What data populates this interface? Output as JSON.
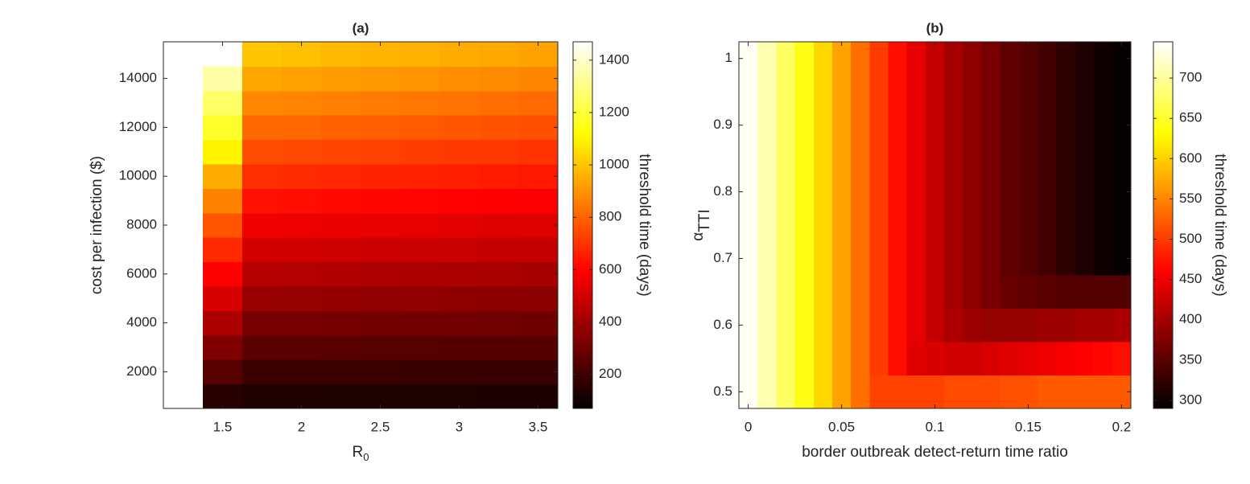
{
  "chart_data": [
    {
      "type": "heatmap",
      "title": "(a)",
      "xlabel": "R",
      "xlabel_sub": "0",
      "ylabel": "cost per infection ($)",
      "colorbar_label": "threshold time (days)",
      "colormap": "hot",
      "x": [
        1.25,
        1.5,
        1.75,
        2,
        2.25,
        2.5,
        2.75,
        3,
        3.25,
        3.5
      ],
      "y": [
        1000,
        2000,
        3000,
        4000,
        5000,
        6000,
        7000,
        8000,
        9000,
        10000,
        11000,
        12000,
        13000,
        14000,
        15000
      ],
      "z": [
        [
          null,
          150,
          132,
          131,
          130,
          130,
          129,
          129,
          128,
          127
        ],
        [
          null,
          250,
          194,
          193,
          191,
          190,
          188,
          187,
          186,
          185
        ],
        [
          null,
          330,
          256,
          254,
          251,
          249,
          248,
          246,
          244,
          242
        ],
        [
          null,
          420,
          318,
          316,
          312,
          309,
          307,
          304,
          302,
          299
        ],
        [
          null,
          510,
          380,
          377,
          372,
          369,
          366,
          363,
          360,
          357
        ],
        [
          null,
          590,
          442,
          438,
          433,
          429,
          425,
          422,
          418,
          414
        ],
        [
          null,
          680,
          504,
          500,
          493,
          489,
          484,
          480,
          476,
          471
        ],
        [
          null,
          770,
          566,
          561,
          554,
          549,
          544,
          539,
          534,
          529
        ],
        [
          null,
          860,
          628,
          622,
          614,
          608,
          603,
          597,
          592,
          586
        ],
        [
          null,
          950,
          690,
          684,
          675,
          668,
          662,
          656,
          650,
          644
        ],
        [
          null,
          1100,
          752,
          745,
          735,
          728,
          721,
          714,
          708,
          701
        ],
        [
          null,
          1180,
          814,
          807,
          795,
          788,
          781,
          773,
          766,
          758
        ],
        [
          null,
          1260,
          876,
          868,
          856,
          848,
          840,
          832,
          824,
          816
        ],
        [
          null,
          1350,
          938,
          929,
          916,
          908,
          899,
          890,
          882,
          873
        ],
        [
          null,
          null,
          1000,
          991,
          977,
          967,
          958,
          949,
          940,
          930
        ]
      ],
      "xlim": [
        1.125,
        3.625
      ],
      "xticks": [
        1.5,
        2,
        2.5,
        3,
        3.5
      ],
      "ylim": [
        500,
        15500
      ],
      "yticks": [
        2000,
        4000,
        6000,
        8000,
        10000,
        12000,
        14000
      ],
      "clim": [
        70,
        1470
      ],
      "cticks": [
        200,
        400,
        600,
        800,
        1000,
        1200,
        1400
      ]
    },
    {
      "type": "heatmap",
      "title": "(b)",
      "xlabel": "border outbreak detect-return time ratio",
      "ylabel": "α",
      "ylabel_sub": "TTI",
      "colorbar_label": "threshold time (days)",
      "colormap": "hot",
      "x": [
        0,
        0.01,
        0.02,
        0.03,
        0.04,
        0.05,
        0.06,
        0.07,
        0.08,
        0.09,
        0.1,
        0.11,
        0.12,
        0.13,
        0.14,
        0.15,
        0.16,
        0.17,
        0.18,
        0.19,
        0.2
      ],
      "y": [
        0.5,
        0.55,
        0.6,
        0.65,
        0.7,
        0.75,
        0.8,
        0.85,
        0.9,
        0.95,
        1
      ],
      "z": [
        [
          740,
          710,
          675,
          640,
          605,
          570,
          535,
          505,
          505,
          505,
          505,
          510,
          510,
          510,
          515,
          515,
          520,
          520,
          520,
          520,
          520
        ],
        [
          740,
          710,
          675,
          640,
          605,
          570,
          535,
          500,
          470,
          440,
          435,
          430,
          430,
          435,
          440,
          445,
          450,
          455,
          460,
          465,
          470
        ],
        [
          740,
          710,
          675,
          640,
          605,
          570,
          535,
          500,
          470,
          445,
          420,
          405,
          395,
          390,
          390,
          390,
          395,
          395,
          400,
          400,
          405
        ],
        [
          740,
          710,
          675,
          640,
          605,
          570,
          535,
          500,
          470,
          445,
          420,
          400,
          385,
          370,
          360,
          355,
          350,
          345,
          345,
          345,
          345
        ],
        [
          740,
          710,
          675,
          640,
          605,
          570,
          535,
          500,
          470,
          445,
          420,
          400,
          385,
          370,
          355,
          345,
          335,
          320,
          310,
          300,
          295
        ],
        [
          740,
          710,
          675,
          640,
          605,
          570,
          535,
          500,
          470,
          445,
          420,
          400,
          385,
          370,
          355,
          345,
          335,
          320,
          310,
          300,
          295
        ],
        [
          740,
          710,
          675,
          640,
          605,
          570,
          535,
          500,
          470,
          445,
          420,
          400,
          385,
          370,
          355,
          345,
          335,
          320,
          310,
          300,
          295
        ],
        [
          740,
          710,
          675,
          640,
          605,
          570,
          535,
          500,
          470,
          445,
          420,
          400,
          385,
          370,
          355,
          345,
          335,
          320,
          310,
          300,
          295
        ],
        [
          740,
          710,
          675,
          640,
          605,
          570,
          535,
          500,
          470,
          445,
          420,
          400,
          385,
          370,
          355,
          345,
          335,
          320,
          310,
          300,
          295
        ],
        [
          740,
          710,
          675,
          640,
          605,
          570,
          535,
          500,
          470,
          445,
          420,
          400,
          385,
          370,
          355,
          345,
          335,
          320,
          310,
          300,
          295
        ],
        [
          740,
          710,
          675,
          640,
          605,
          570,
          535,
          500,
          470,
          445,
          420,
          400,
          385,
          370,
          355,
          345,
          335,
          320,
          310,
          300,
          295
        ]
      ],
      "xlim": [
        -0.005,
        0.205
      ],
      "xticks": [
        0,
        0.05,
        0.1,
        0.15,
        0.2
      ],
      "ylim": [
        0.475,
        1.025
      ],
      "yticks": [
        0.5,
        0.6,
        0.7,
        0.8,
        0.9,
        1
      ],
      "clim": [
        290,
        745
      ],
      "cticks": [
        300,
        350,
        400,
        450,
        500,
        550,
        600,
        650,
        700
      ]
    }
  ]
}
